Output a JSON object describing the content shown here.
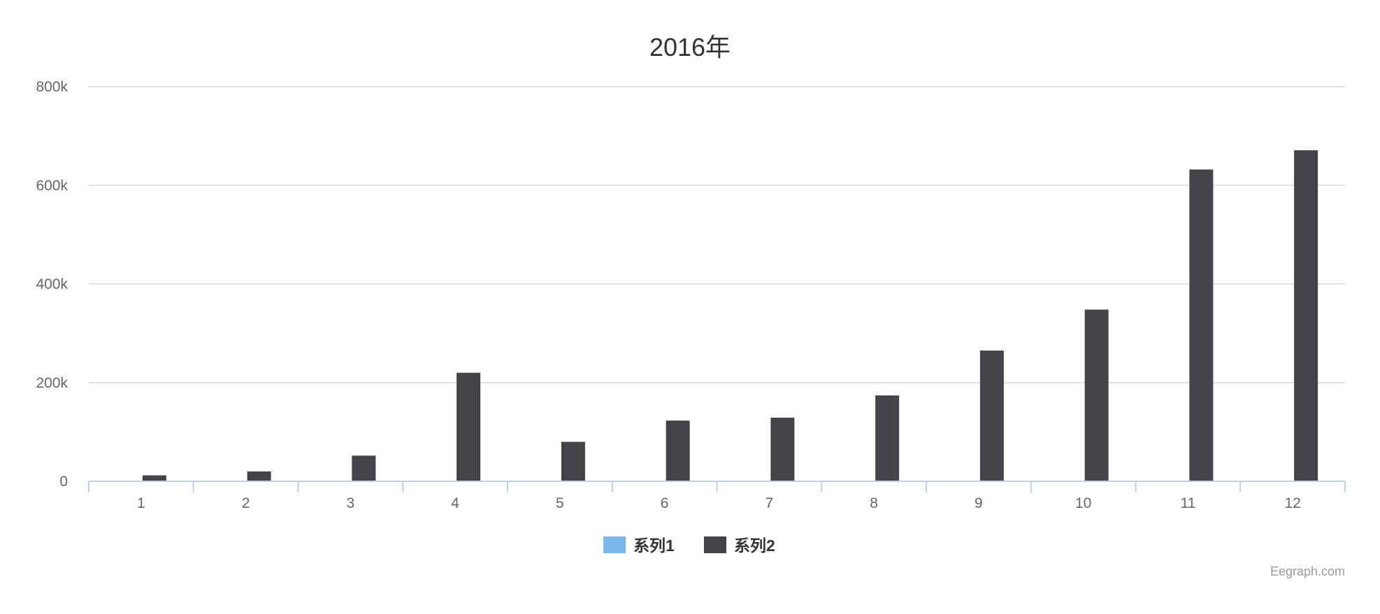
{
  "chart_data": {
    "type": "bar",
    "title": "2016年",
    "xlabel": "",
    "ylabel": "",
    "categories": [
      "1",
      "2",
      "3",
      "4",
      "5",
      "6",
      "7",
      "8",
      "9",
      "10",
      "11",
      "12"
    ],
    "series": [
      {
        "name": "系列1",
        "color": "#7cb5ec",
        "values": [
          0,
          0,
          0,
          0,
          0,
          0,
          0,
          0,
          0,
          0,
          0,
          0
        ]
      },
      {
        "name": "系列2",
        "color": "#434348",
        "values": [
          12000,
          20000,
          52000,
          220000,
          80000,
          123000,
          129000,
          174000,
          265000,
          348000,
          632000,
          671000
        ]
      }
    ],
    "ylim": [
      0,
      800000
    ],
    "yticks": [
      0,
      200000,
      400000,
      600000,
      800000
    ],
    "ytick_labels": [
      "0",
      "200k",
      "400k",
      "600k",
      "800k"
    ],
    "grid": true,
    "legend_position": "bottom-center",
    "credit": "Eegraph.com"
  }
}
